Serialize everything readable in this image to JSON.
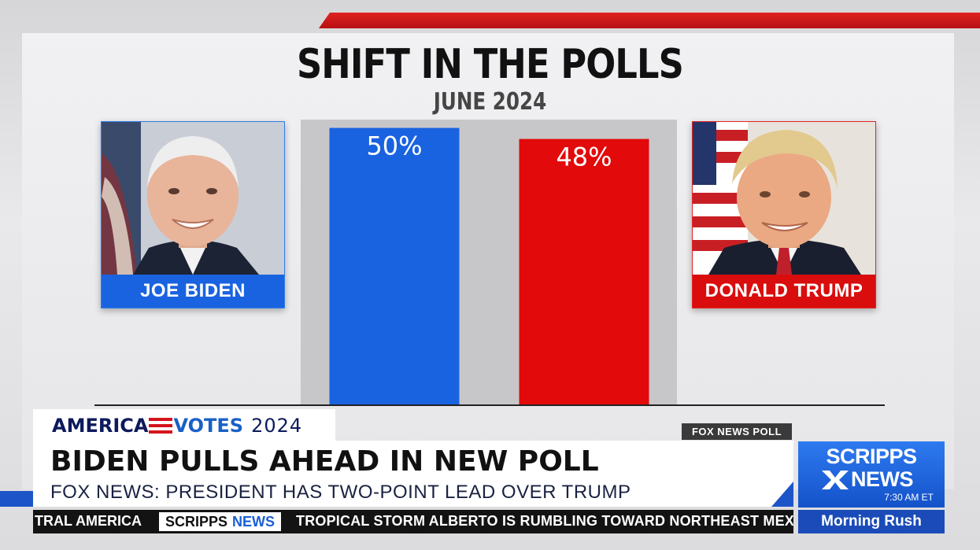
{
  "title": "SHIFT IN THE POLLS",
  "subtitle": "JUNE 2024",
  "candidates": {
    "left": {
      "name": "JOE BIDEN",
      "color": "#1a63e0"
    },
    "right": {
      "name": "DONALD TRUMP",
      "color": "#d90d0d"
    }
  },
  "chart_data": {
    "type": "bar",
    "categories": [
      "JOE BIDEN",
      "DONALD TRUMP"
    ],
    "values": [
      50,
      48
    ],
    "labels": [
      "50%",
      "48%"
    ],
    "colors": [
      "#1a63e0",
      "#e20a0a"
    ],
    "ylim": [
      0,
      51.5
    ],
    "grid": false,
    "legend": "none",
    "source": "FOX NEWS POLL"
  },
  "chyron": {
    "brand_left": "AMERICA",
    "brand_right": "VOTES",
    "brand_year": "2024",
    "source_tag": "FOX NEWS POLL",
    "headline": "BIDEN PULLS AHEAD IN NEW POLL",
    "subhead": "FOX NEWS: PRESIDENT HAS TWO-POINT LEAD OVER TRUMP"
  },
  "ticker": {
    "lead": "TRAL AMERICA",
    "brand_a": "SCRIPPS",
    "brand_b": "NEWS",
    "story": "TROPICAL STORM ALBERTO IS RUMBLING TOWARD NORTHEAST MEXIC"
  },
  "network": {
    "line1": "SCRIPPS",
    "line2": "NEWS",
    "time": "7:30 AM ET",
    "show": "Morning Rush"
  }
}
